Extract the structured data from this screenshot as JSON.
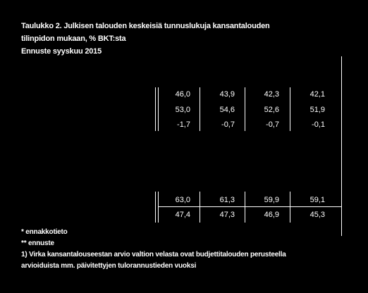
{
  "title": {
    "line1": "Taulukko 2. Julkisen talouden keskeisiä tunnuslukuja kansantalouden",
    "line2": "tilinpidon mukaan, % BKT:sta",
    "line3": "Ennuste syyskuu 2015"
  },
  "table": {
    "block1": [
      [
        "46,0",
        "43,9",
        "42,3",
        "42,1"
      ],
      [
        "53,0",
        "54,6",
        "52,6",
        "51,9"
      ],
      [
        "-1,7",
        "-0,7",
        "-0,7",
        "-0,1"
      ]
    ],
    "block2": [
      [
        "63,0",
        "61,3",
        "59,9",
        "59,1"
      ],
      [
        "47,4",
        "47,3",
        "46,9",
        "45,3"
      ]
    ]
  },
  "footnotes": {
    "f1": "* ennakkotieto",
    "f2": "** ennuste",
    "f3a": "1) Virka kansantalouseestan arvio valtion velasta ovat budjettitalouden perusteella",
    "f3b": "arvioiduista mm. päivitettyjen tulorannustieden vuoksi"
  }
}
